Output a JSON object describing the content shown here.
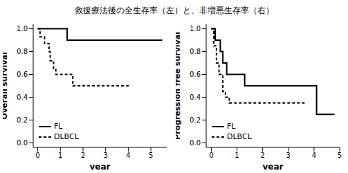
{
  "title": "救援療法後の全生存率（左）と、非増悪生存率（右）",
  "chart_data": [
    {
      "type": "line",
      "x_label": "year",
      "y_label": "Overall survival",
      "xlim": [
        -0.2,
        5.7
      ],
      "ylim": [
        -0.04,
        1.04
      ],
      "xticks": [
        0,
        1,
        2,
        3,
        4,
        5
      ],
      "yticks": [
        {
          "value": 0,
          "label": "0.0"
        },
        {
          "value": 0.2,
          "label": "0.2"
        },
        {
          "value": 0.4,
          "label": "0.4"
        },
        {
          "value": 0.6,
          "label": "0.6"
        },
        {
          "value": 0.8,
          "label": "0.8"
        },
        {
          "value": 1,
          "label": "1.0"
        }
      ],
      "legend": "lower left",
      "series": [
        {
          "name": "FL",
          "color": "#000000",
          "line_style": "solid",
          "x": [
            0,
            1.3,
            5.5
          ],
          "values": [
            1.0,
            0.9,
            0.9
          ]
        },
        {
          "name": "DLBCL",
          "color": "#000000",
          "line_style": "dashed",
          "x": [
            0,
            0.1,
            0.3,
            0.5,
            0.55,
            0.7,
            0.8,
            1.55,
            4.05
          ],
          "values": [
            1.0,
            0.93,
            0.87,
            0.8,
            0.72,
            0.65,
            0.6,
            0.5,
            0.5
          ]
        }
      ]
    },
    {
      "type": "line",
      "x_label": "year",
      "y_label": "Progression free survival",
      "xlim": [
        -0.2,
        5.0
      ],
      "ylim": [
        -0.04,
        1.04
      ],
      "xticks": [
        0,
        1,
        2,
        3,
        4,
        5
      ],
      "yticks": [
        {
          "value": 0,
          "label": "0.0"
        },
        {
          "value": 0.2,
          "label": "0.2"
        },
        {
          "value": 0.4,
          "label": "0.4"
        },
        {
          "value": 0.6,
          "label": "0.6"
        },
        {
          "value": 0.8,
          "label": "0.8"
        },
        {
          "value": 1,
          "label": "1.0"
        }
      ],
      "legend": "lower left",
      "series": [
        {
          "name": "FL",
          "color": "#000000",
          "line_style": "solid",
          "x": [
            0,
            0.15,
            0.35,
            0.45,
            0.6,
            1.3,
            4.1,
            4.8
          ],
          "values": [
            1.0,
            0.9,
            0.8,
            0.7,
            0.6,
            0.5,
            0.25,
            0.25
          ]
        },
        {
          "name": "DLBCL",
          "color": "#000000",
          "line_style": "dashed",
          "x": [
            0,
            0.1,
            0.2,
            0.3,
            0.45,
            0.55,
            0.7,
            3.7
          ],
          "values": [
            1.0,
            0.85,
            0.7,
            0.6,
            0.45,
            0.4,
            0.35,
            0.35
          ]
        }
      ]
    }
  ]
}
